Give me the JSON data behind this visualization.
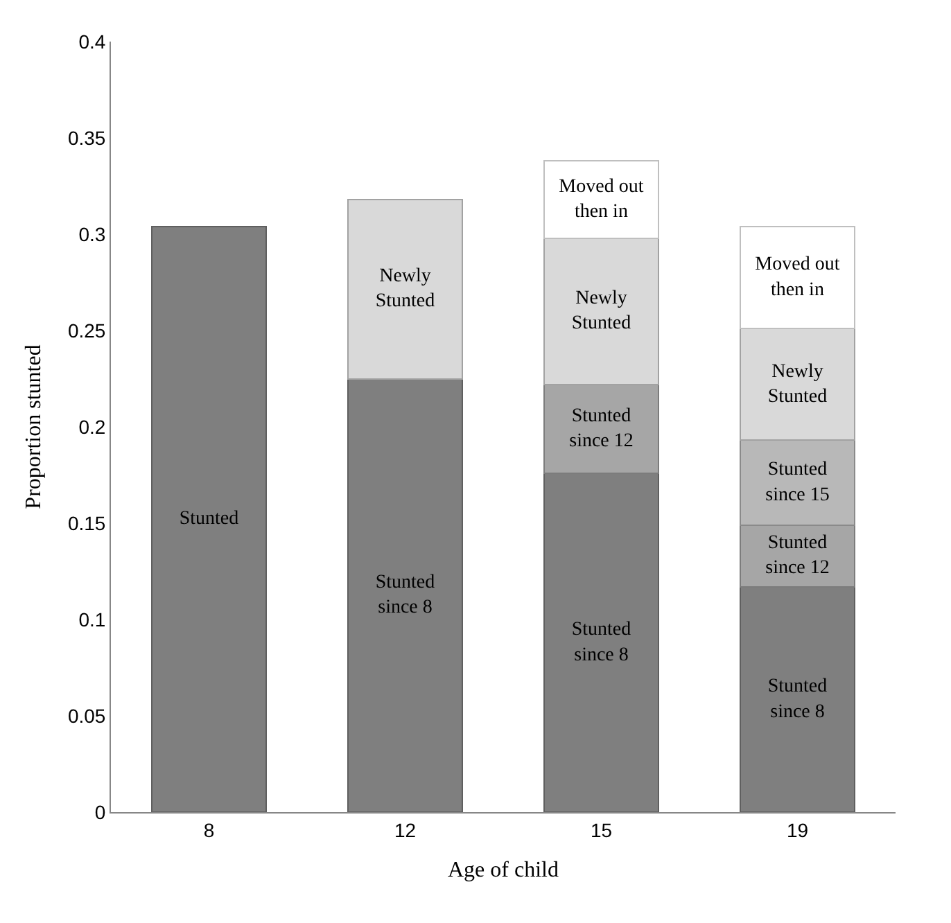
{
  "chart_data": {
    "type": "bar",
    "stacked": true,
    "xlabel": "Age of child",
    "ylabel": "Proportion stunted",
    "categories": [
      "8",
      "12",
      "15",
      "19"
    ],
    "series": [
      {
        "color": "#7f7f7f",
        "values": [
          0.304,
          0.225,
          0.176,
          0.117
        ],
        "value_labels": [
          "Stunted",
          "Stunted since 8",
          "Stunted since 8",
          "Stunted since 8"
        ]
      },
      {
        "color": "#a6a6a6",
        "values": [
          null,
          null,
          0.046,
          0.032
        ],
        "value_labels": [
          null,
          null,
          "Stunted since 12",
          "Stunted since 12"
        ]
      },
      {
        "color": "#b8b8b8",
        "values": [
          null,
          null,
          null,
          0.044
        ],
        "value_labels": [
          null,
          null,
          null,
          "Stunted since 15"
        ]
      },
      {
        "color": "#d9d9d9",
        "values": [
          null,
          0.093,
          0.076,
          0.058
        ],
        "value_labels": [
          null,
          "Newly Stunted",
          "Newly Stunted",
          "Newly Stunted"
        ]
      },
      {
        "color": "#ffffff",
        "values": [
          null,
          null,
          0.04,
          0.053
        ],
        "value_labels": [
          null,
          null,
          "Moved out then in",
          "Moved out then in"
        ]
      }
    ],
    "ylim": [
      0,
      0.4
    ],
    "yticks": [
      0,
      0.05,
      0.1,
      0.15,
      0.2,
      0.25,
      0.3,
      0.35,
      0.4
    ]
  }
}
